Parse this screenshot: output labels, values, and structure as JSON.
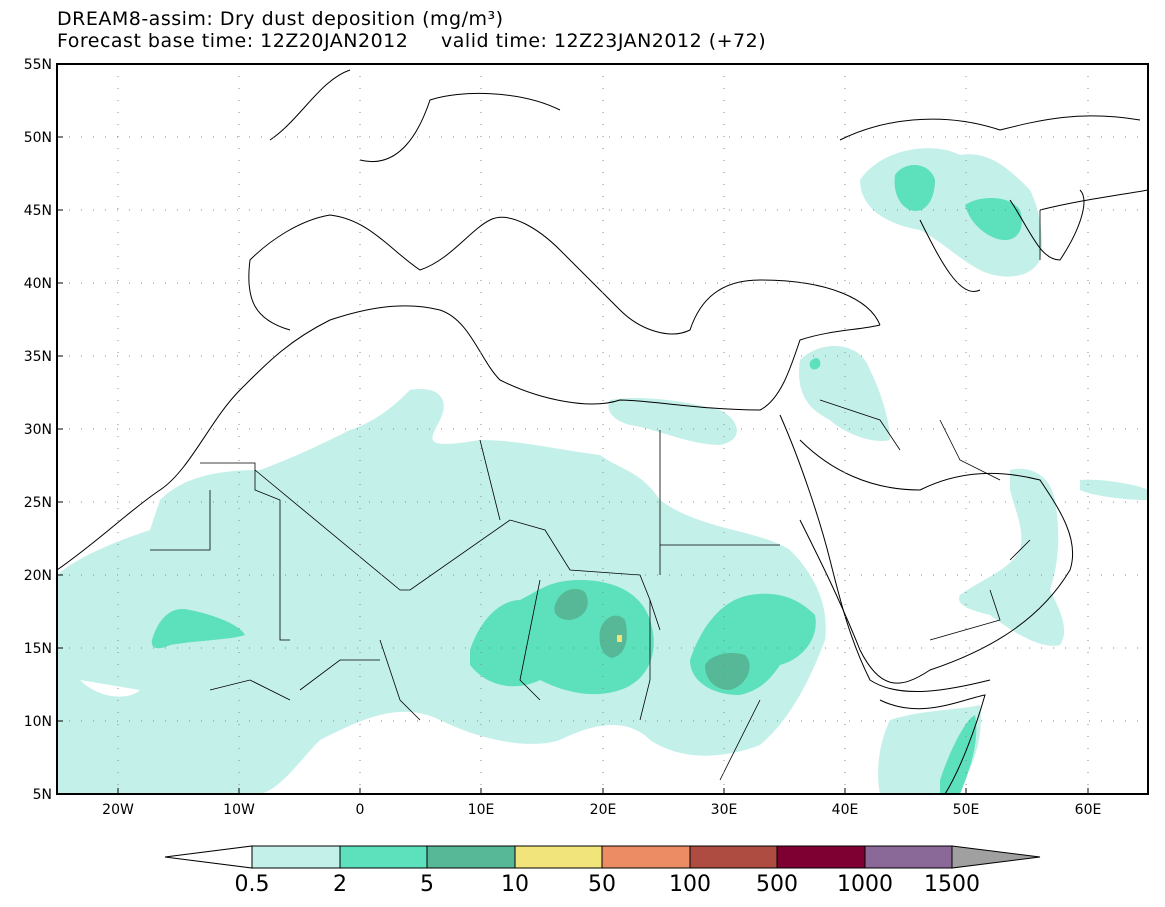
{
  "title": {
    "line1": "DREAM8-assim: Dry dust deposition (mg/m³)",
    "line2_left": "Forecast base time: 12Z20JAN2012",
    "line2_right": "valid time: 12Z23JAN2012 (+72)"
  },
  "map": {
    "lon_range": [
      -25,
      65
    ],
    "lat_range": [
      5,
      55
    ],
    "lat_labels": [
      "5N",
      "10N",
      "15N",
      "20N",
      "25N",
      "30N",
      "35N",
      "40N",
      "45N",
      "50N",
      "55N"
    ],
    "lon_labels": [
      "20W",
      "10W",
      "0",
      "10E",
      "20E",
      "30E",
      "40E",
      "50E",
      "60E"
    ],
    "grid": "dotted"
  },
  "colorbar": {
    "levels": [
      "0.5",
      "2",
      "5",
      "10",
      "50",
      "100",
      "500",
      "1000",
      "1500"
    ],
    "colors": [
      "#c4f0ea",
      "#5de0bc",
      "#56b896",
      "#f0e47a",
      "#ec8c64",
      "#ae4c42",
      "#7e0032",
      "#8a6898",
      "#a0a0a0"
    ]
  },
  "icons": [
    "colorbar-left-triangle",
    "colorbar-right-triangle"
  ]
}
